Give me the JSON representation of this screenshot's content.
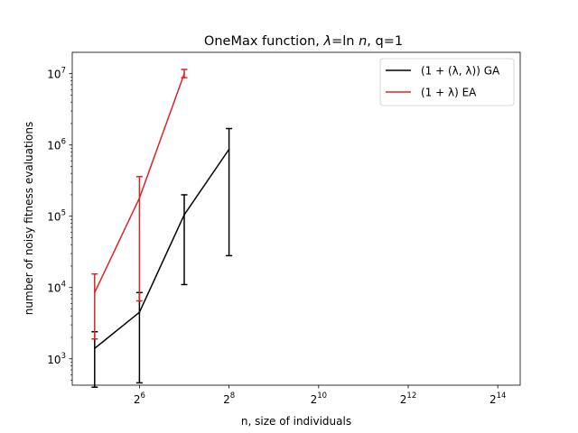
{
  "chart_data": {
    "type": "line",
    "title_parts": [
      "OneMax function, ",
      "λ",
      "=ln ",
      "n",
      ", q=1"
    ],
    "xlabel": "n, size of individuals",
    "ylabel": "number of noisy fitness evaluations",
    "xscale": "log2",
    "yscale": "log10",
    "xlim_exp2": [
      4.5,
      14.5
    ],
    "ylim_exp10": [
      2.63,
      7.3
    ],
    "x_ticks": [
      {
        "exp": 6,
        "base": "2",
        "sup": "6"
      },
      {
        "exp": 8,
        "base": "2",
        "sup": "8"
      },
      {
        "exp": 10,
        "base": "2",
        "sup": "10"
      },
      {
        "exp": 12,
        "base": "2",
        "sup": "12"
      },
      {
        "exp": 14,
        "base": "2",
        "sup": "14"
      }
    ],
    "y_ticks": [
      {
        "exp": 3,
        "base": "10",
        "sup": "3"
      },
      {
        "exp": 4,
        "base": "10",
        "sup": "4"
      },
      {
        "exp": 5,
        "base": "10",
        "sup": "5"
      },
      {
        "exp": 6,
        "base": "10",
        "sup": "6"
      },
      {
        "exp": 7,
        "base": "10",
        "sup": "7"
      }
    ],
    "legend_position": "top-right",
    "grid": false,
    "series": [
      {
        "name": "(1 + (λ, λ)) GA",
        "color": "#000000",
        "x": [
          32,
          64,
          128,
          256
        ],
        "y": [
          1400,
          4500,
          105000,
          870000
        ],
        "err_low": [
          400,
          460,
          11000,
          28000
        ],
        "err_high": [
          2400,
          8500,
          200000,
          1700000
        ]
      },
      {
        "name": "(1 + λ) EA",
        "color": "#d62728",
        "x": [
          32,
          64,
          128
        ],
        "y": [
          8500,
          180000,
          10000000
        ],
        "err_low": [
          1900,
          6500,
          8800000
        ],
        "err_high": [
          15500,
          360000,
          11500000
        ]
      }
    ]
  }
}
